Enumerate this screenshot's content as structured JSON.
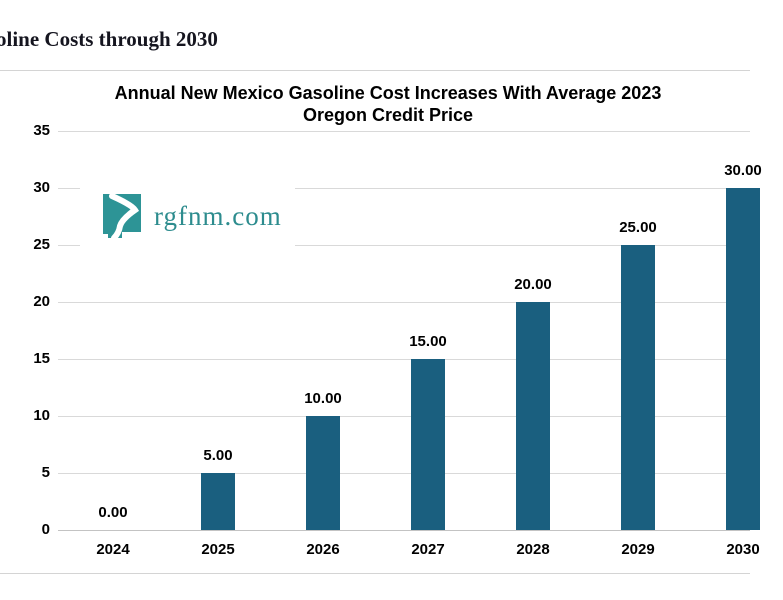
{
  "page": {
    "heading": "oline Costs through 2030"
  },
  "watermark": {
    "text": "rgfnm.com",
    "icon": "new-mexico-river-logo",
    "color": "#2d8c8e"
  },
  "chart_data": {
    "type": "bar",
    "title": "Annual New Mexico Gasoline Cost Increases With Average 2023 Oregon Credit Price",
    "title_lines": [
      "Annual New Mexico Gasoline Cost Increases With Average 2023",
      "Oregon Credit Price"
    ],
    "categories": [
      "2024",
      "2025",
      "2026",
      "2027",
      "2028",
      "2029",
      "2030"
    ],
    "values": [
      0,
      5,
      10,
      15,
      20,
      25,
      30
    ],
    "data_labels": [
      "0.00",
      "5.00",
      "10.00",
      "15.00",
      "20.00",
      "25.00",
      "30.00"
    ],
    "y_ticks": [
      35,
      30,
      25,
      20,
      15,
      10,
      5,
      0
    ],
    "ylim": [
      0,
      35
    ],
    "xlabel": "",
    "ylabel": "",
    "grid": true,
    "legend_position": "none",
    "colors": {
      "bar": "#1a5f7f",
      "gridline": "#d9d9d9",
      "zero_line": "#c3c3c3",
      "text": "#000000"
    }
  }
}
